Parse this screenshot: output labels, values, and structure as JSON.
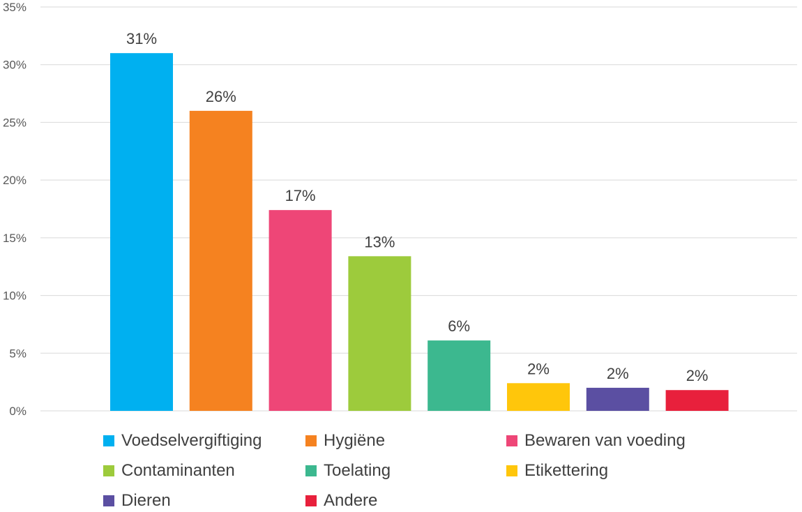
{
  "chart_data": {
    "type": "bar",
    "categories": [
      "Voedselvergiftiging",
      "Hygiëne",
      "Bewaren van voeding",
      "Contaminanten",
      "Toelating",
      "Etikettering",
      "Dieren",
      "Andere"
    ],
    "values": [
      31,
      26,
      17.4,
      13.4,
      6.1,
      2.4,
      2.0,
      1.8
    ],
    "data_labels": [
      "31%",
      "26%",
      "17%",
      "13%",
      "6%",
      "2%",
      "2%",
      "2%"
    ],
    "colors": [
      "#00b0f0",
      "#f58220",
      "#ee4677",
      "#9dcb3c",
      "#3cb88f",
      "#ffc60b",
      "#5b4fa2",
      "#e8203c"
    ],
    "ylim": [
      0,
      35
    ],
    "yticks": [
      0,
      5,
      10,
      15,
      20,
      25,
      30,
      35
    ],
    "ytick_labels": [
      "0%",
      "5%",
      "10%",
      "15%",
      "20%",
      "25%",
      "30%",
      "35%"
    ],
    "grid": true,
    "legend_position": "bottom",
    "title": "",
    "xlabel": "",
    "ylabel": ""
  }
}
